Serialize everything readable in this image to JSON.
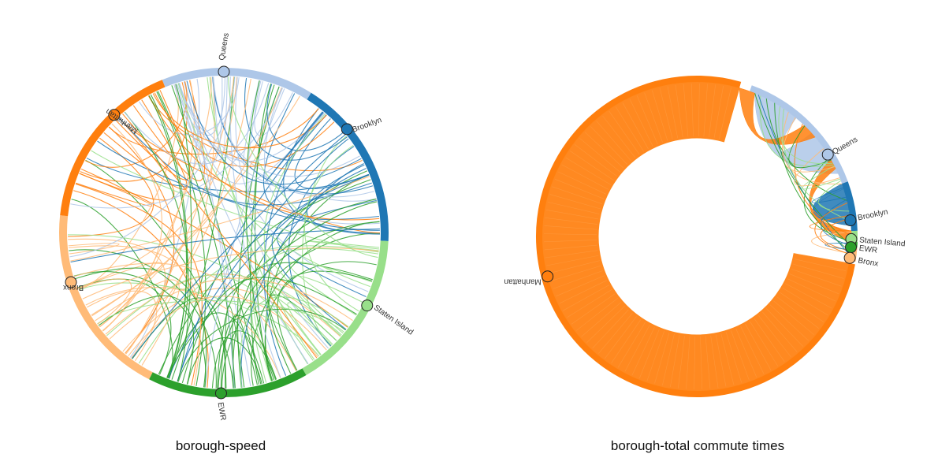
{
  "captions": {
    "left": "borough-speed",
    "right": "borough-total commute times"
  },
  "colors": {
    "Manhattan": "#ff7f0e",
    "Bronx": "#ffbb78",
    "Queens": "#aec7e8",
    "Brooklyn": "#1f77b4",
    "Staten Island": "#98df8a",
    "EWR": "#2ca02c"
  },
  "chart_data": [
    {
      "type": "chord",
      "title": "borough-speed",
      "nodes": [
        "Queens",
        "Brooklyn",
        "Staten Island",
        "EWR",
        "Bronx",
        "Manhattan"
      ]
    },
    {
      "type": "chord",
      "title": "borough-total commute times",
      "nodes": [
        "Queens",
        "Brooklyn",
        "Staten Island",
        "EWR",
        "Bronx",
        "Manhattan"
      ]
    }
  ]
}
